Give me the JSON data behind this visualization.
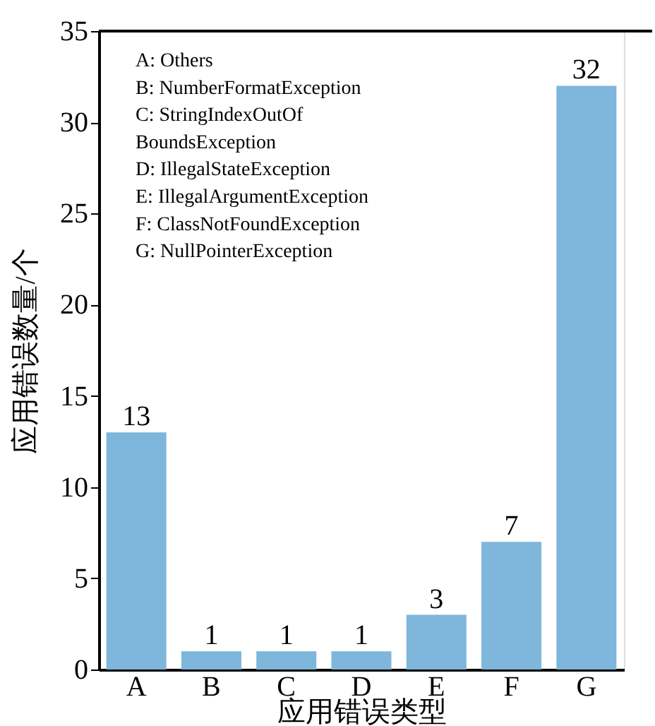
{
  "chart_data": {
    "type": "bar",
    "categories": [
      "A",
      "B",
      "C",
      "D",
      "E",
      "F",
      "G"
    ],
    "values": [
      13,
      1,
      1,
      1,
      3,
      7,
      32
    ],
    "color": "#7eb6dc",
    "data_labels": true,
    "xlabel": "应用错误类型",
    "ylabel": "应用错误数量/个",
    "ylim": [
      0,
      35
    ],
    "yticks": [
      0,
      5,
      10,
      15,
      20,
      25,
      30,
      35
    ],
    "grid": false,
    "annotations": [
      "A: Others",
      "B: NumberFormatException",
      "C: StringIndexOutOf",
      "    BoundsException",
      "D: IllegalStateException",
      "E: IllegalArgumentException",
      "F: ClassNotFoundException",
      "G: NullPointerException"
    ]
  }
}
